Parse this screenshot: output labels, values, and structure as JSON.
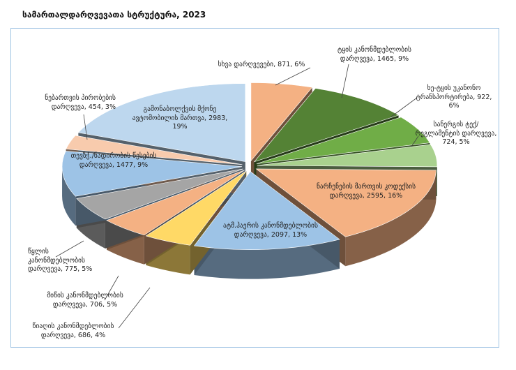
{
  "chart_data": {
    "type": "pie3d",
    "title": "სამართალდარღვევათა სტრუქტურა, 2023",
    "values": [
      871,
      1465,
      922,
      724,
      2595,
      2097,
      686,
      706,
      775,
      1477,
      454,
      2983
    ],
    "value_labels": [
      "სხვა დარღვევები, 871, 6%",
      "ტყის კანონმდებლობის დარღვევა, 1465, 9%",
      "ხე-ტყის უკანონო ტრანსპორტირება, 922, 6%",
      "სანერგის ტექ/რეგლამენტის დარღვევა, 724, 5%",
      "ნარჩენების მართვის კოდექსის დარღვევა, 2595, 16%",
      "ატმ.ჰაერის კანონმდებლობის დარღვევა, 2097, 13%",
      "წიაღის კანონმდებლობის დარღვევა, 686, 4%",
      "მიწის კანონმდებლობის დარღვევა, 706, 5%",
      "წყლის კანონმდებლობის დარღვევა, 775, 5%",
      "თევზჭ./ნადირობის წესების დარღვევა, 1477, 9%",
      "ნებართვის პირობების დარღვევა, 454, 3%",
      "გამონაბოლქვის მქონე ავტომობილის მართვა, 2983, 19%"
    ],
    "colors": [
      "#f4b183",
      "#548235",
      "#70ad47",
      "#a9d18e",
      "#f4b183",
      "#9dc3e6",
      "#ffd966",
      "#f4b183",
      "#a5a5a5",
      "#9dc3e6",
      "#f8cbad",
      "#bdd7ee"
    ]
  }
}
